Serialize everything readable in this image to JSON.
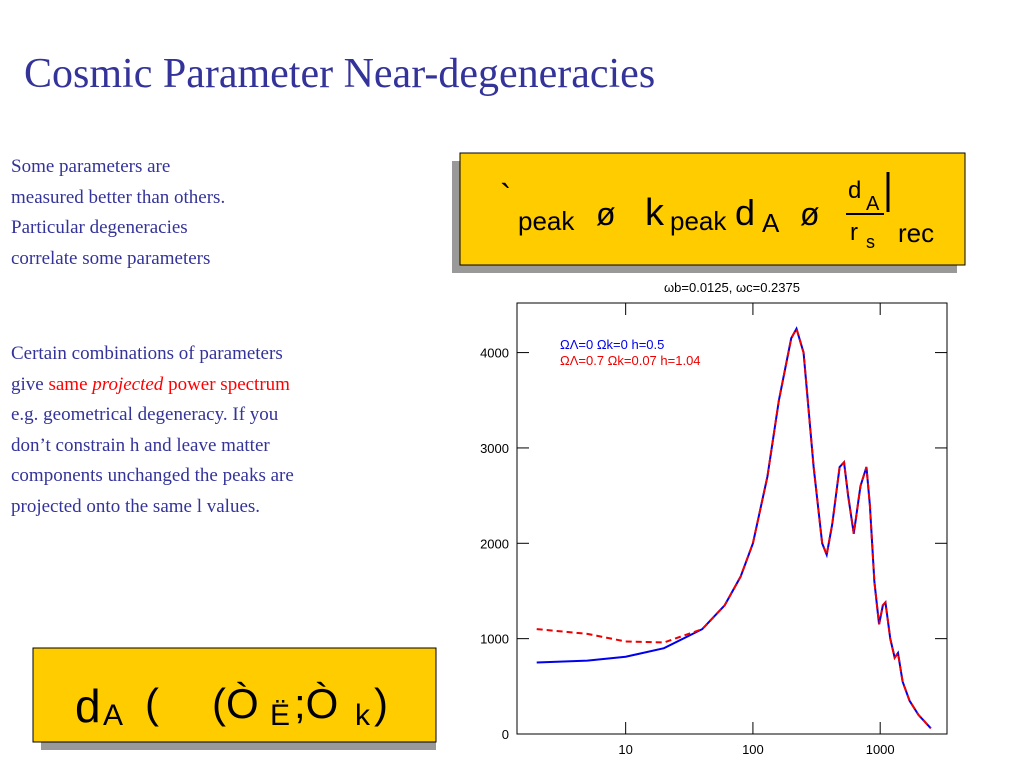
{
  "title": "Cosmic Parameter Near-degeneracies",
  "paragraph1": [
    "Some parameters are",
    "measured better than others.",
    "Particular degeneracies",
    "correlate some parameters"
  ],
  "paragraph2": {
    "line1": "Certain combinations of parameters",
    "give": "give",
    "same": "same",
    "projected": "projected",
    "power": "power spectrum",
    "rest": [
      "e.g. geometrical degeneracy. If  you",
      "don’t constrain h and leave matter",
      "components unchanged the peaks are",
      "projected onto the same l values."
    ]
  },
  "formula1": [
    "`",
    "peak",
    "ø",
    "k",
    "peak",
    "d",
    "A",
    "ø",
    "d",
    "A",
    "r",
    "s",
    "rec"
  ],
  "formula2": [
    "d",
    "A",
    "(",
    "(Ò",
    "Ë",
    ";Ò",
    "k",
    ")"
  ],
  "chart_data": {
    "type": "line",
    "title": "ωb=0.0125,  ωc=0.2375",
    "log_x": true,
    "x": [
      2,
      5,
      10,
      20,
      40,
      60,
      80,
      100,
      130,
      160,
      200,
      220,
      250,
      300,
      350,
      380,
      420,
      480,
      520,
      560,
      620,
      700,
      780,
      830,
      900,
      980,
      1050,
      1100,
      1200,
      1300,
      1380,
      1500,
      1700,
      2000,
      2500
    ],
    "series": [
      {
        "name": "ΩΛ=0  Ωk=0  h=0.5",
        "color": "#0000ee",
        "dash": false,
        "values": [
          750,
          770,
          810,
          900,
          1100,
          1350,
          1650,
          2000,
          2700,
          3500,
          4150,
          4250,
          4000,
          2800,
          2000,
          1880,
          2200,
          2800,
          2850,
          2500,
          2100,
          2600,
          2800,
          2400,
          1600,
          1150,
          1350,
          1380,
          1000,
          800,
          850,
          550,
          350,
          200,
          60
        ]
      },
      {
        "name": "ΩΛ=0.7  Ωk=0.07  h=1.04",
        "color": "#ee0000",
        "dash": true,
        "values": [
          1100,
          1050,
          970,
          960,
          1100,
          1350,
          1650,
          2000,
          2700,
          3500,
          4150,
          4250,
          4000,
          2800,
          2000,
          1880,
          2200,
          2800,
          2850,
          2500,
          2100,
          2600,
          2800,
          2400,
          1600,
          1150,
          1350,
          1380,
          1000,
          800,
          850,
          550,
          350,
          200,
          60
        ]
      }
    ],
    "xlim": [
      1.4,
      3350
    ],
    "ylim": [
      0,
      4520
    ],
    "xticks": [
      10,
      100,
      1000
    ],
    "yticks": [
      0,
      1000,
      2000,
      3000,
      4000
    ]
  }
}
